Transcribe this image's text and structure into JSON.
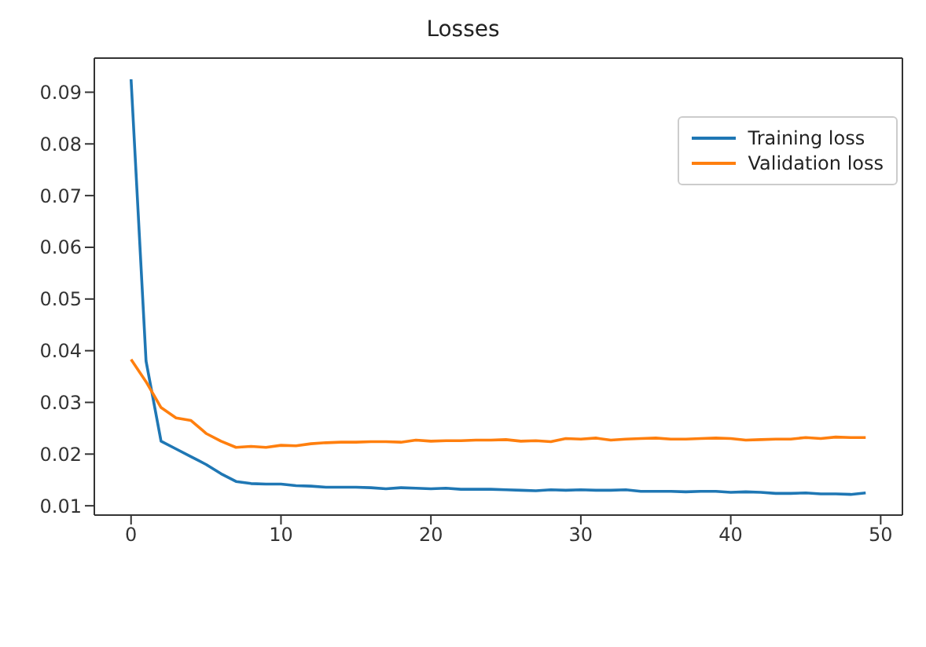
{
  "chart_data": {
    "type": "line",
    "title": "Losses",
    "x": [
      0,
      1,
      2,
      3,
      4,
      5,
      6,
      7,
      8,
      9,
      10,
      11,
      12,
      13,
      14,
      15,
      16,
      17,
      18,
      19,
      20,
      21,
      22,
      23,
      24,
      25,
      26,
      27,
      28,
      29,
      30,
      31,
      32,
      33,
      34,
      35,
      36,
      37,
      38,
      39,
      40,
      41,
      42,
      43,
      44,
      45,
      46,
      47,
      48,
      49
    ],
    "series": [
      {
        "name": "Training loss",
        "color": "#1f77b4",
        "values": [
          0.0925,
          0.038,
          0.0225,
          0.021,
          0.0195,
          0.018,
          0.0162,
          0.0147,
          0.0143,
          0.0142,
          0.0142,
          0.0139,
          0.0138,
          0.0136,
          0.0136,
          0.0136,
          0.0135,
          0.0133,
          0.0135,
          0.0134,
          0.0133,
          0.0134,
          0.0132,
          0.0132,
          0.0132,
          0.0131,
          0.013,
          0.0129,
          0.0131,
          0.013,
          0.0131,
          0.013,
          0.013,
          0.0131,
          0.0128,
          0.0128,
          0.0128,
          0.0127,
          0.0128,
          0.0128,
          0.0126,
          0.0127,
          0.0126,
          0.0124,
          0.0124,
          0.0125,
          0.0123,
          0.0123,
          0.0122,
          0.0125
        ]
      },
      {
        "name": "Validation loss",
        "color": "#ff7f0e",
        "values": [
          0.0383,
          0.034,
          0.029,
          0.027,
          0.0265,
          0.024,
          0.0225,
          0.0213,
          0.0215,
          0.0213,
          0.0217,
          0.0216,
          0.022,
          0.0222,
          0.0223,
          0.0223,
          0.0224,
          0.0224,
          0.0223,
          0.0227,
          0.0225,
          0.0226,
          0.0226,
          0.0227,
          0.0227,
          0.0228,
          0.0225,
          0.0226,
          0.0224,
          0.023,
          0.0229,
          0.0231,
          0.0227,
          0.0229,
          0.023,
          0.0231,
          0.0229,
          0.0229,
          0.023,
          0.0231,
          0.023,
          0.0227,
          0.0228,
          0.0229,
          0.0229,
          0.0232,
          0.023,
          0.0233,
          0.0232,
          0.0232
        ]
      }
    ],
    "xlim": [
      -2.45,
      51.45
    ],
    "xticks": [
      0,
      10,
      20,
      30,
      40,
      50
    ],
    "ylim": [
      0.0082,
      0.0966
    ],
    "yticks": [
      0.01,
      0.02,
      0.03,
      0.04,
      0.05,
      0.06,
      0.07,
      0.08,
      0.09
    ],
    "grid": false,
    "legend": "top right",
    "marker": "none",
    "line_style": "solid"
  }
}
